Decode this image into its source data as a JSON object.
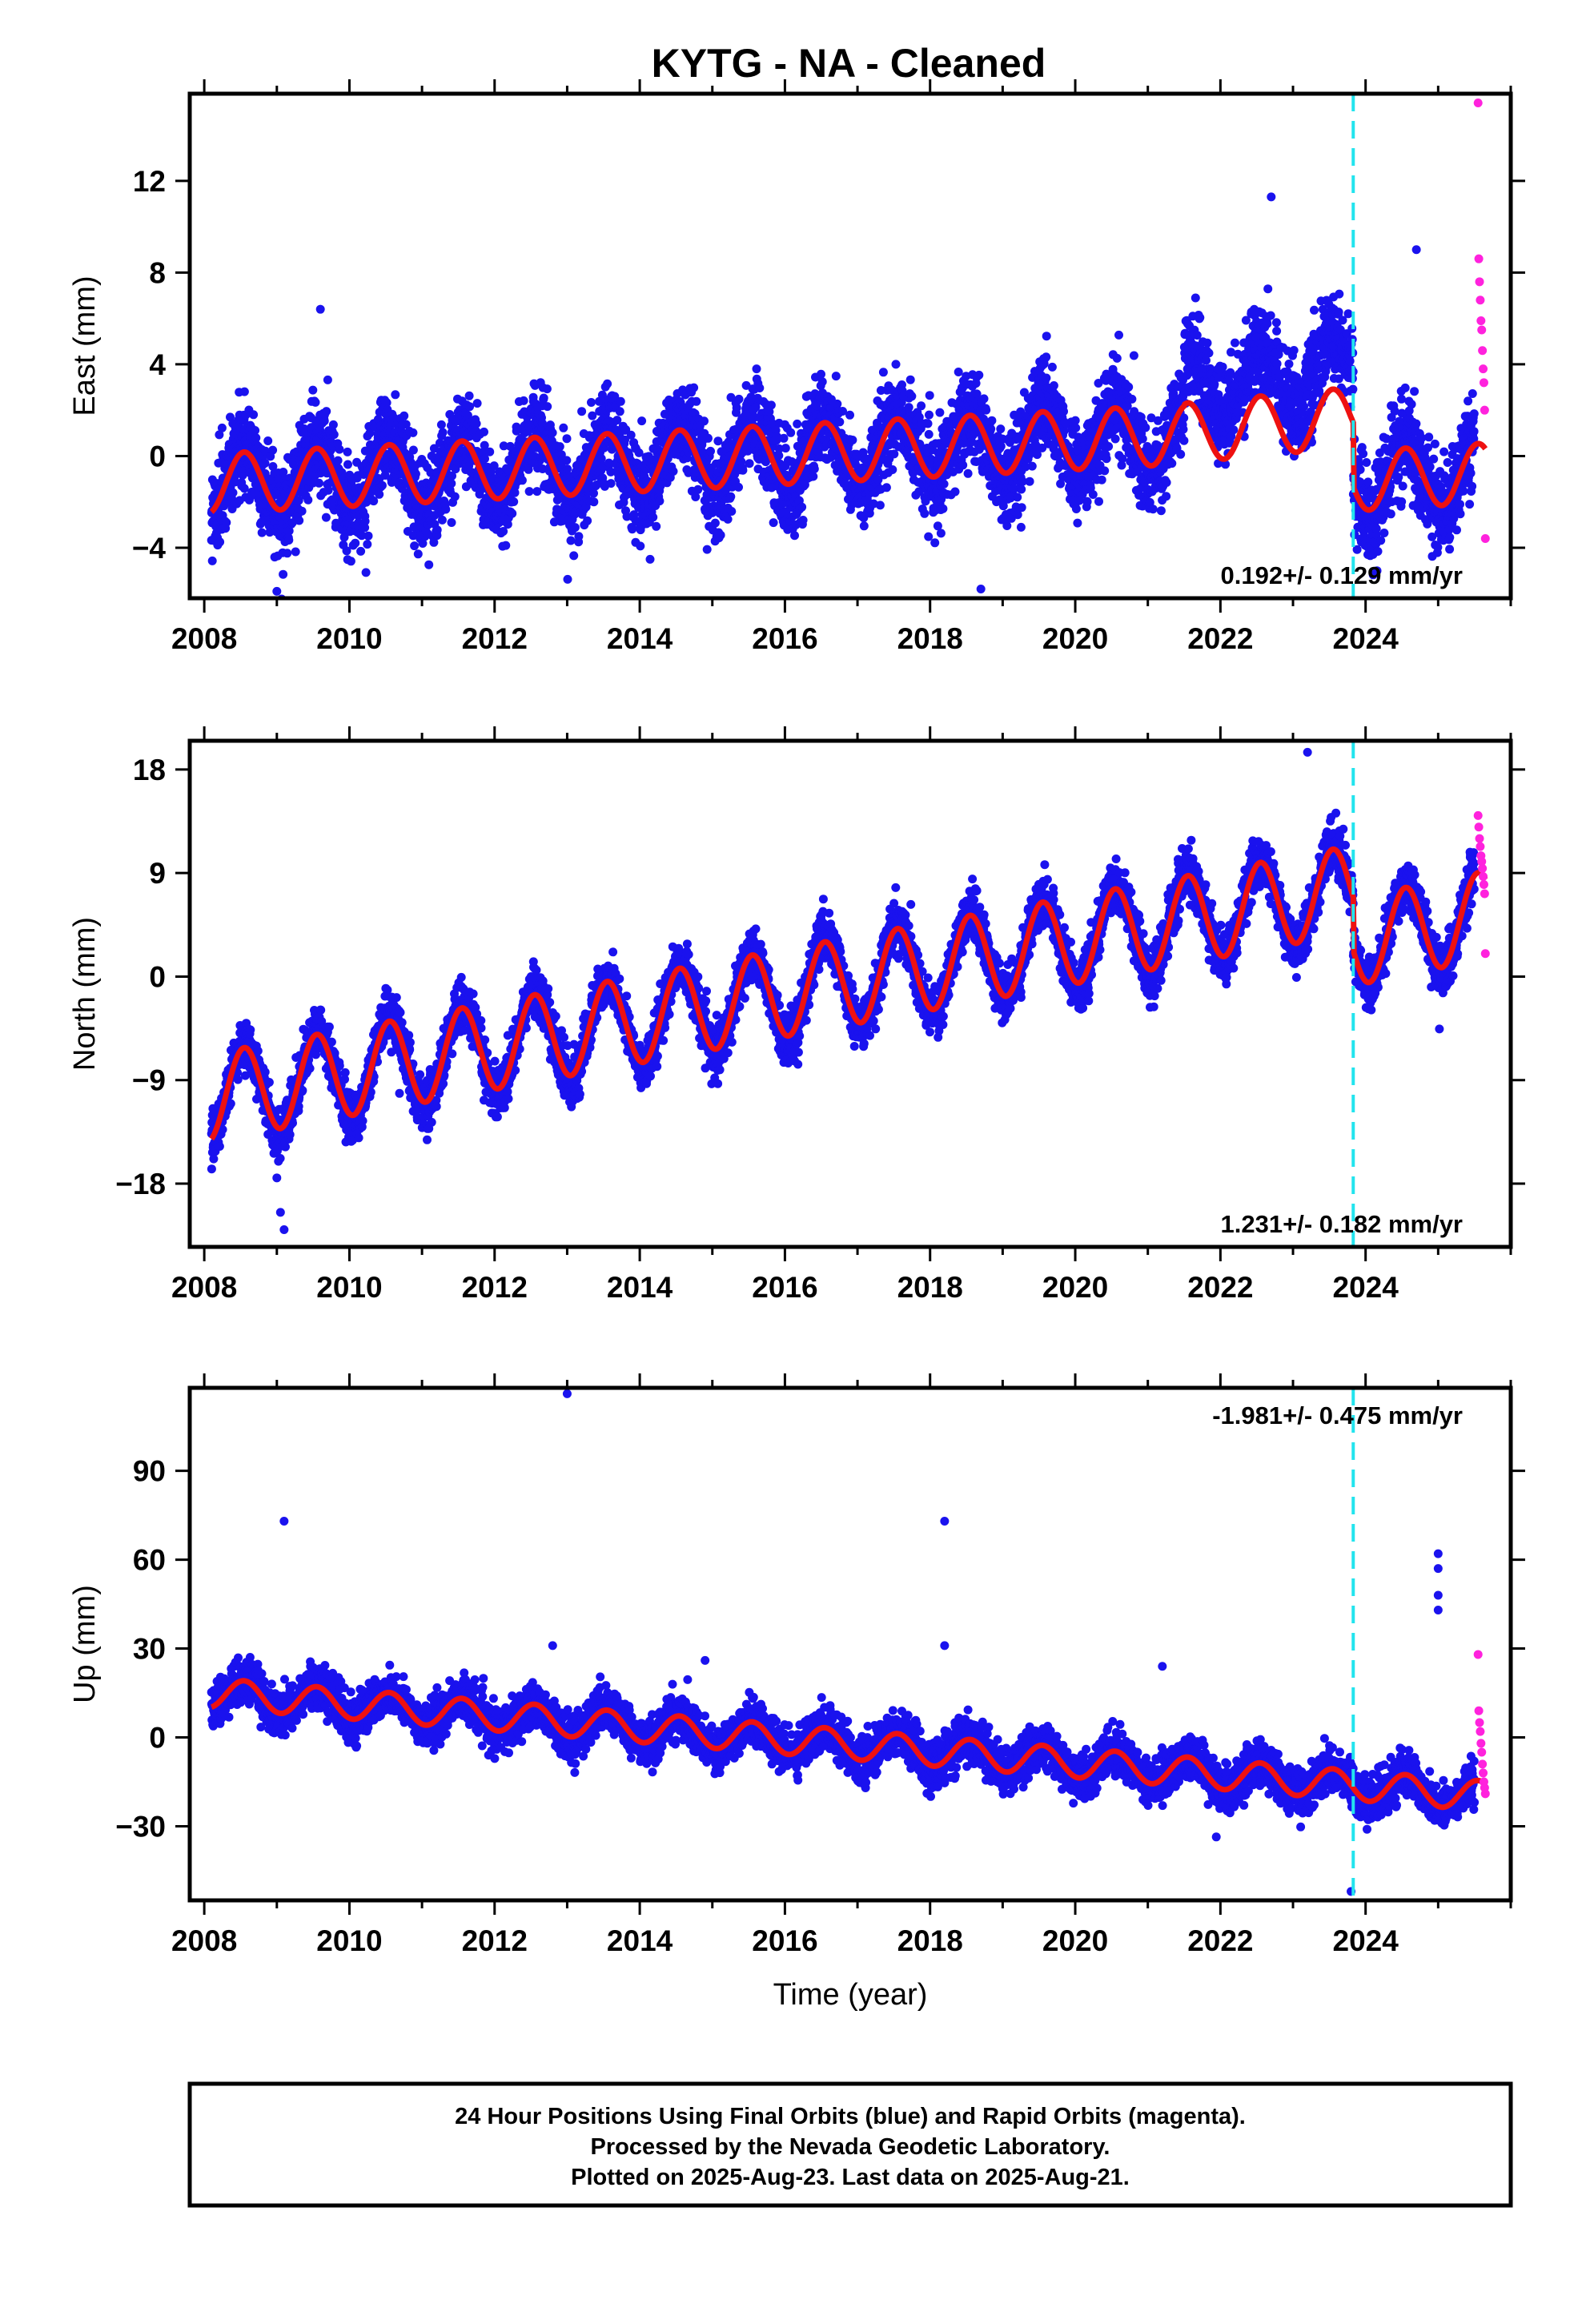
{
  "chart_data": [
    {
      "type": "scatter",
      "title": "KYTG  - NA - Cleaned",
      "ylabel": "East (mm)",
      "xlabel": "",
      "xlim": [
        2007.8,
        2026.0
      ],
      "ylim": [
        -6.2,
        15.8
      ],
      "x_ticks": [
        2008,
        2010,
        2012,
        2014,
        2016,
        2018,
        2020,
        2022,
        2024
      ],
      "y_ticks": [
        -4,
        0,
        4,
        8,
        12
      ],
      "rate_label": "0.192+/- 0.129 mm/yr",
      "rate_label_position": "bottom-right",
      "event_line_x": 2023.83,
      "series": [
        {
          "name": "Final Orbits",
          "color": "#1a12ee",
          "kind": "points",
          "x_start": 2008.1,
          "x_end": 2025.5,
          "scatter_mm": 1.6,
          "segments": [
            {
              "from": 2008.1,
              "to": 2021.5,
              "offset": -1.2,
              "trend": 0.16
            },
            {
              "from": 2021.5,
              "to": 2023.83,
              "offset": 3.0,
              "trend": 0.3
            },
            {
              "from": 2023.83,
              "to": 2025.5,
              "offset": -1.1,
              "trend": 0.2
            }
          ],
          "annual_amplitude": 1.5,
          "outliers": [
            [
              2009.6,
              6.4
            ],
            [
              2009.0,
              -5.9
            ],
            [
              2018.7,
              -5.8
            ],
            [
              2022.7,
              11.3
            ],
            [
              2024.7,
              9.0
            ]
          ]
        },
        {
          "name": "Rapid Orbits",
          "color": "#ff22dd",
          "kind": "points",
          "x": [
            2025.55,
            2025.56,
            2025.57,
            2025.58,
            2025.59,
            2025.6,
            2025.61,
            2025.62,
            2025.63,
            2025.64,
            2025.65
          ],
          "values": [
            15.4,
            8.6,
            7.6,
            6.8,
            5.9,
            5.5,
            4.6,
            3.8,
            3.2,
            2.0,
            -3.6
          ]
        },
        {
          "name": "Model",
          "color": "#ee1111",
          "kind": "line",
          "x_start": 2008.1,
          "x_end": 2025.65,
          "segments": [
            {
              "from": 2008.1,
              "to": 2021.5,
              "offset": -1.2,
              "trend": 0.16
            },
            {
              "from": 2021.5,
              "to": 2023.83,
              "offset": 1.0,
              "trend": 0.3
            },
            {
              "from": 2023.83,
              "to": 2025.65,
              "offset": -1.1,
              "trend": 0.2
            }
          ],
          "annual_amplitude": 1.3
        }
      ]
    },
    {
      "type": "scatter",
      "title": "",
      "ylabel": "North (mm)",
      "xlabel": "",
      "xlim": [
        2007.8,
        2026.0
      ],
      "ylim": [
        -23.5,
        20.5
      ],
      "x_ticks": [
        2008,
        2010,
        2012,
        2014,
        2016,
        2018,
        2020,
        2022,
        2024
      ],
      "y_ticks": [
        -18,
        -9,
        0,
        9,
        18
      ],
      "rate_label": "1.231+/- 0.182 mm/yr",
      "rate_label_position": "bottom-right",
      "event_line_x": 2023.83,
      "series": [
        {
          "name": "Final Orbits",
          "color": "#1a12ee",
          "kind": "points",
          "x_start": 2008.1,
          "x_end": 2025.5,
          "scatter_mm": 1.8,
          "segments": [
            {
              "from": 2008.1,
              "to": 2023.83,
              "offset": -10.5,
              "trend": 1.15
            },
            {
              "from": 2023.83,
              "to": 2025.5,
              "offset": 3.0,
              "trend": 1.3
            }
          ],
          "annual_amplitude": 4.0,
          "outliers": [
            [
              2009.0,
              -17.5
            ],
            [
              2009.05,
              -20.5
            ],
            [
              2009.1,
              -22.0
            ],
            [
              2023.2,
              19.5
            ]
          ]
        },
        {
          "name": "Rapid Orbits",
          "color": "#ff22dd",
          "kind": "points",
          "x": [
            2025.55,
            2025.56,
            2025.57,
            2025.58,
            2025.59,
            2025.6,
            2025.61,
            2025.62,
            2025.63,
            2025.64,
            2025.65
          ],
          "values": [
            14.0,
            13.0,
            12.0,
            11.3,
            10.5,
            10.0,
            9.4,
            8.7,
            8.0,
            7.2,
            2.0
          ]
        },
        {
          "name": "Model",
          "color": "#ee1111",
          "kind": "line",
          "x_start": 2008.1,
          "x_end": 2025.65,
          "segments": [
            {
              "from": 2008.1,
              "to": 2023.83,
              "offset": -10.5,
              "trend": 1.15
            },
            {
              "from": 2023.83,
              "to": 2025.65,
              "offset": 3.0,
              "trend": 1.3
            }
          ],
          "annual_amplitude": 3.8
        }
      ]
    },
    {
      "type": "scatter",
      "title": "",
      "ylabel": "Up (mm)",
      "xlabel": "Time (year)",
      "xlim": [
        2007.8,
        2026.0
      ],
      "ylim": [
        -55,
        118
      ],
      "x_ticks": [
        2008,
        2010,
        2012,
        2014,
        2016,
        2018,
        2020,
        2022,
        2024
      ],
      "y_ticks": [
        -30,
        0,
        30,
        60,
        90
      ],
      "rate_label": "-1.981+/- 0.475 mm/yr",
      "rate_label_position": "top-right",
      "event_line_x": 2023.83,
      "series": [
        {
          "name": "Final Orbits",
          "color": "#1a12ee",
          "kind": "points",
          "x_start": 2008.1,
          "x_end": 2025.5,
          "scatter_mm": 6.0,
          "segments": [
            {
              "from": 2008.1,
              "to": 2025.5,
              "offset": 15.0,
              "trend": -1.98
            }
          ],
          "annual_amplitude": 5.0,
          "outliers": [
            [
              2009.1,
              73
            ],
            [
              2013.0,
              116
            ],
            [
              2018.2,
              73
            ],
            [
              2018.2,
              31
            ],
            [
              2012.8,
              31
            ],
            [
              2014.9,
              26
            ],
            [
              2021.2,
              24
            ],
            [
              2023.8,
              -52
            ],
            [
              2025.0,
              62
            ],
            [
              2025.0,
              57
            ],
            [
              2025.0,
              48
            ],
            [
              2025.0,
              43
            ]
          ]
        },
        {
          "name": "Rapid Orbits",
          "color": "#ff22dd",
          "kind": "points",
          "x": [
            2025.55,
            2025.56,
            2025.57,
            2025.58,
            2025.59,
            2025.6,
            2025.61,
            2025.62,
            2025.63,
            2025.64,
            2025.65
          ],
          "values": [
            28,
            9,
            5,
            2,
            -2,
            -5,
            -9,
            -12,
            -15,
            -17,
            -19
          ]
        },
        {
          "name": "Model",
          "color": "#ee1111",
          "kind": "line",
          "x_start": 2008.1,
          "x_end": 2025.65,
          "segments": [
            {
              "from": 2008.1,
              "to": 2025.65,
              "offset": 15.0,
              "trend": -1.98
            }
          ],
          "annual_amplitude": 5.0
        }
      ]
    }
  ],
  "footer": {
    "line1": "24 Hour Positions Using Final Orbits (blue) and Rapid Orbits (magenta).",
    "line2": "Processed by the Nevada Geodetic Laboratory.",
    "line3": "Plotted on 2025-Aug-23. Last data on 2025-Aug-21."
  }
}
